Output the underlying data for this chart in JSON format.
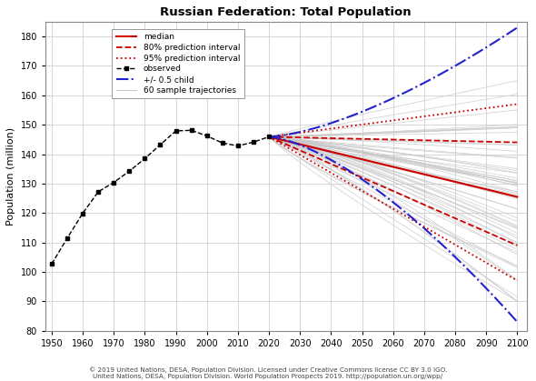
{
  "title": "Russian Federation: Total Population",
  "ylabel": "Population (million)",
  "xlim": [
    1948,
    2103
  ],
  "ylim": [
    80,
    185
  ],
  "yticks": [
    80,
    90,
    100,
    110,
    120,
    130,
    140,
    150,
    160,
    170,
    180
  ],
  "xticks": [
    1950,
    1960,
    1970,
    1980,
    1990,
    2000,
    2010,
    2020,
    2030,
    2040,
    2050,
    2060,
    2070,
    2080,
    2090,
    2100
  ],
  "footnote": "© 2019 United Nations, DESA, Population Division. Licensed under Creative Commons license CC BY 3.0 IGO.\nUnited Nations, DESA, Population Division. World Population Prospects 2019. http://population.un.org/wpp/",
  "observed_years": [
    1950,
    1955,
    1960,
    1965,
    1970,
    1975,
    1980,
    1985,
    1990,
    1995,
    2000,
    2005,
    2010,
    2015,
    2020
  ],
  "observed_values": [
    102.7,
    111.4,
    119.9,
    127.2,
    130.4,
    134.2,
    138.5,
    143.2,
    147.9,
    148.1,
    146.2,
    143.8,
    142.8,
    144.1,
    145.9
  ],
  "forecast_start_year": 2020,
  "forecast_end_year": 2100,
  "median_2100": 125.5,
  "pi80_upper_2100": 144.0,
  "pi80_lower_2100": 109.0,
  "pi95_upper_2100": 157.0,
  "pi95_lower_2100": 97.0,
  "half_child_upper_2100": 183.0,
  "half_child_lower_2100": 83.0,
  "background_color": "#ffffff",
  "grid_color": "#d0d0d0",
  "observed_color": "#000000",
  "median_color": "#cc0000",
  "pi80_color": "#cc0000",
  "pi95_color": "#cc0000",
  "half_child_color": "#2222cc",
  "trajectory_color": "#c8c8c8",
  "legend_items": [
    "median",
    "80% prediction interval",
    "95% prediction interval",
    "observed",
    "+/- 0.5 child",
    "60 sample trajectories"
  ]
}
